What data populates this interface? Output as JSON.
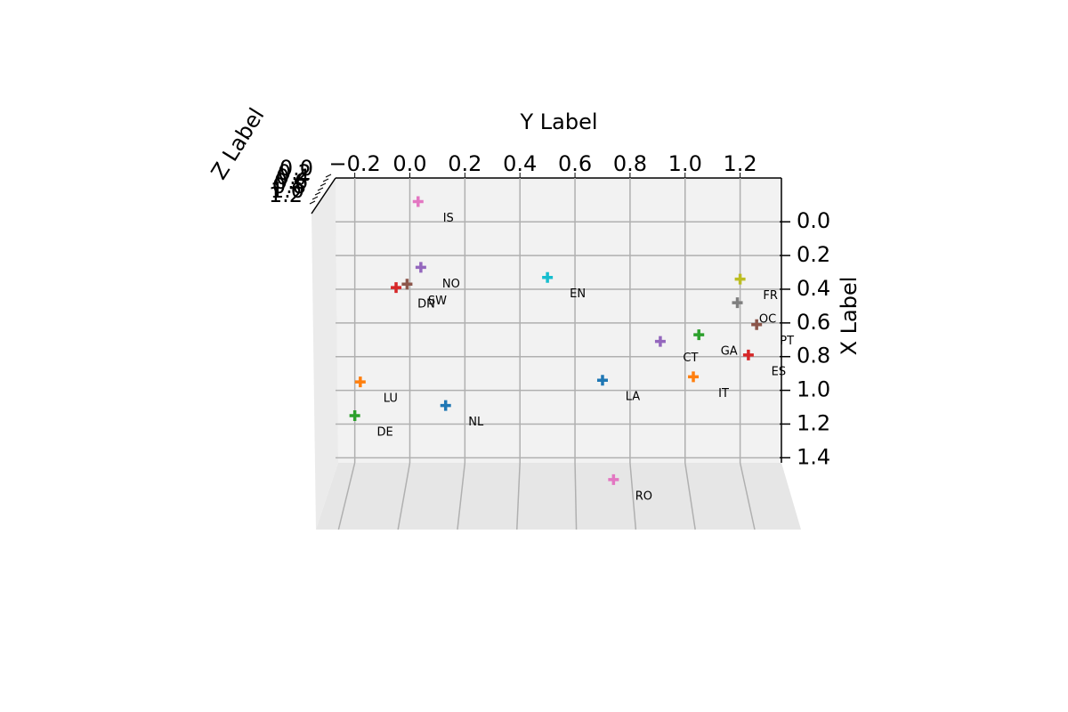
{
  "chart_data": {
    "type": "scatter3d",
    "xlabel": "X Label",
    "ylabel": "Y Label",
    "zlabel": "Z Label",
    "xlim": [
      -0.26,
      1.43
    ],
    "ylim": [
      -0.27,
      1.35
    ],
    "zlim": [
      0,
      1.2
    ],
    "xticks": [
      {
        "value": 0,
        "label": "0.0"
      },
      0.2,
      0.4,
      0.6,
      0.8,
      {
        "value": 1,
        "label": "1.0"
      },
      1.2,
      1.4
    ],
    "yticks": [
      {
        "value": -0.2,
        "label": "−0.2"
      },
      {
        "value": 0,
        "label": "0.0"
      },
      0.2,
      0.4,
      0.6,
      0.8,
      {
        "value": 1,
        "label": "1.0"
      },
      1.2
    ],
    "zticks": [
      {
        "value": 0,
        "label": "0.0"
      },
      0.2,
      0.4,
      0.6,
      0.8,
      {
        "value": 1,
        "label": "1.0"
      },
      1.2
    ],
    "grid": true,
    "points": [
      {
        "label": "IS",
        "color": "#e377c2",
        "x": -0.12,
        "y": 0.03
      },
      {
        "label": "NO",
        "color": "#9467bd",
        "x": 0.27,
        "y": 0.04
      },
      {
        "label": "SW",
        "color": "#8c564b",
        "x": 0.37,
        "y": -0.01
      },
      {
        "label": "DN",
        "color": "#d62728",
        "x": 0.39,
        "y": -0.05
      },
      {
        "label": "EN",
        "color": "#17becf",
        "x": 0.33,
        "y": 0.5
      },
      {
        "label": "FR",
        "color": "#bcbd22",
        "x": 0.34,
        "y": 1.2
      },
      {
        "label": "OC",
        "color": "#7f7f7f",
        "x": 0.48,
        "y": 1.19
      },
      {
        "label": "PT",
        "color": "#8c564b",
        "x": 0.61,
        "y": 1.26
      },
      {
        "label": "GA",
        "color": "#2ca02c",
        "x": 0.67,
        "y": 1.05
      },
      {
        "label": "CT",
        "color": "#9467bd",
        "x": 0.71,
        "y": 0.91
      },
      {
        "label": "ES",
        "color": "#d62728",
        "x": 0.79,
        "y": 1.23
      },
      {
        "label": "IT",
        "color": "#ff7f0e",
        "x": 0.92,
        "y": 1.03
      },
      {
        "label": "LA",
        "color": "#1f77b4",
        "x": 0.94,
        "y": 0.7
      },
      {
        "label": "LU",
        "color": "#ff7f0e",
        "x": 0.95,
        "y": -0.18
      },
      {
        "label": "NL",
        "color": "#1f77b4",
        "x": 1.09,
        "y": 0.13
      },
      {
        "label": "DE",
        "color": "#2ca02c",
        "x": 1.15,
        "y": -0.2
      },
      {
        "label": "RO",
        "color": "#e377c2",
        "x": 1.53,
        "y": 0.74
      }
    ]
  }
}
